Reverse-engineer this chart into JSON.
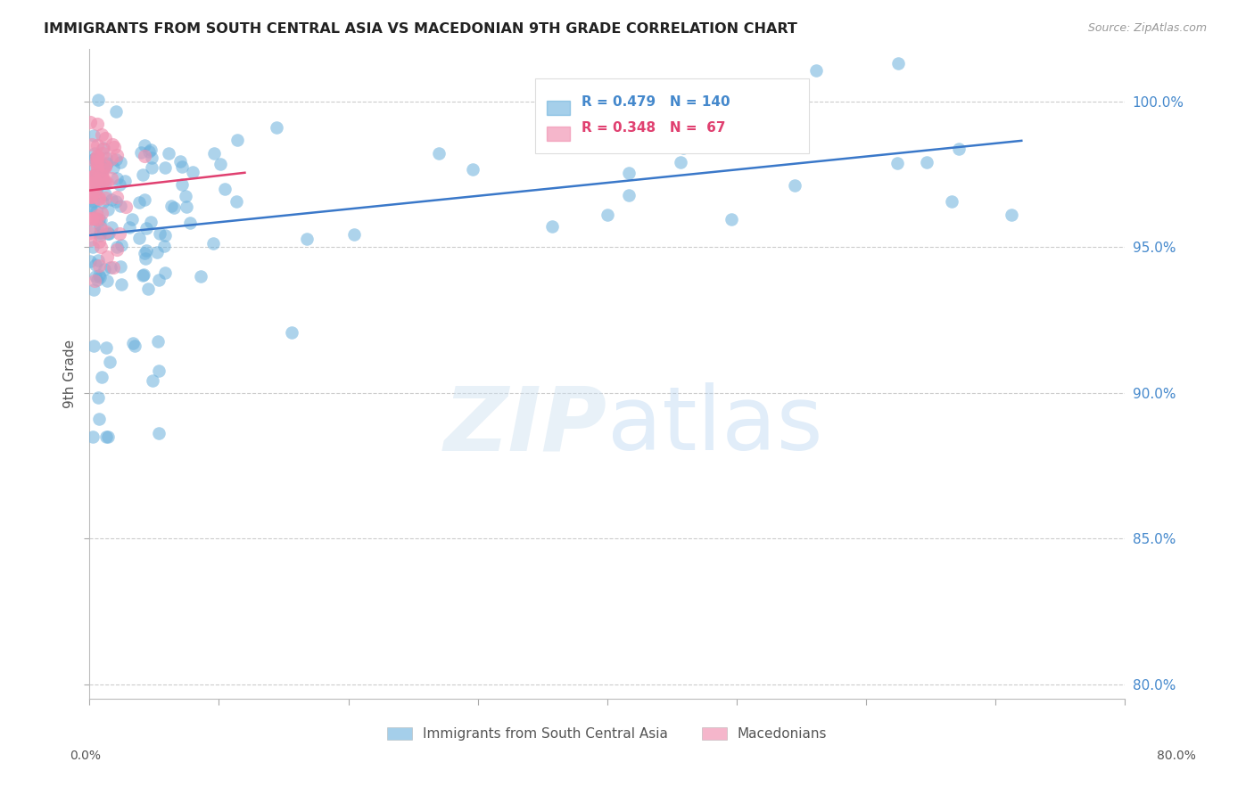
{
  "title": "IMMIGRANTS FROM SOUTH CENTRAL ASIA VS MACEDONIAN 9TH GRADE CORRELATION CHART",
  "source": "Source: ZipAtlas.com",
  "ylabel": "9th Grade",
  "right_yticks": [
    100.0,
    95.0,
    90.0,
    85.0,
    80.0
  ],
  "xlim": [
    0.0,
    80.0
  ],
  "ylim": [
    79.5,
    101.8
  ],
  "legend_blue": {
    "R": 0.479,
    "N": 140,
    "label": "Immigrants from South Central Asia"
  },
  "legend_pink": {
    "R": 0.348,
    "N": 67,
    "label": "Macedonians"
  },
  "blue_color": "#6ab0dc",
  "pink_color": "#f090b0",
  "blue_line_color": "#3a78c9",
  "pink_line_color": "#e04070",
  "watermark_zip": "ZIP",
  "watermark_atlas": "atlas",
  "seed_blue": 201,
  "seed_pink": 301,
  "N_blue": 140,
  "N_pink": 67
}
